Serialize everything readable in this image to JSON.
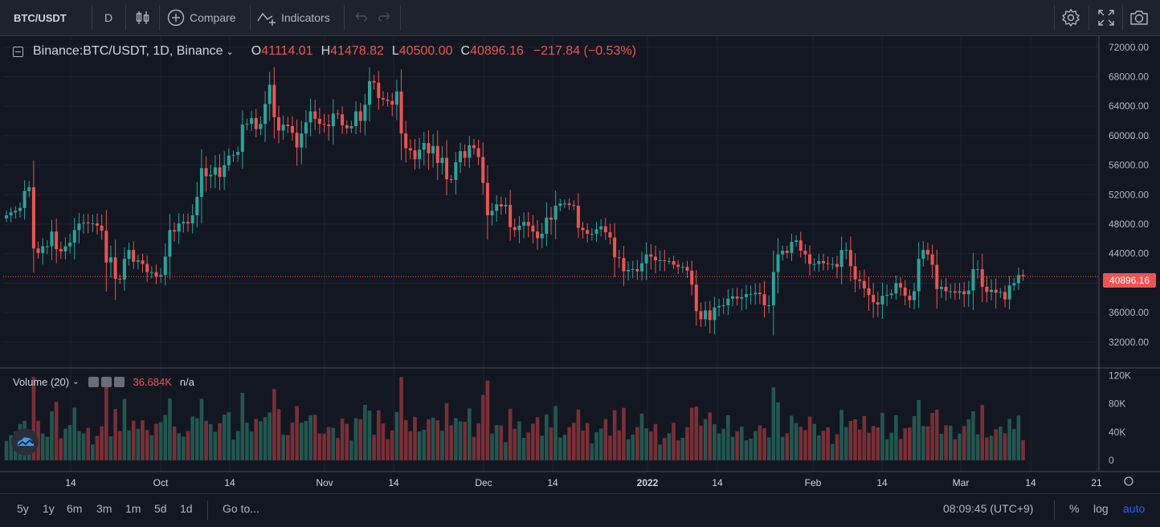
{
  "toolbar": {
    "symbol": "BTC/USDT",
    "interval": "D",
    "compare_label": "Compare",
    "indicators_label": "Indicators"
  },
  "legend": {
    "title": "Binance:BTC/USDT, 1D, Binance",
    "open_prefix": "O",
    "open": "41114.01",
    "high_prefix": "H",
    "high": "41478.82",
    "low_prefix": "L",
    "low": "40500.00",
    "close_prefix": "C",
    "close": "40896.16",
    "change": "−217.84 (−0.53%)"
  },
  "volume_legend": {
    "title": "Volume (20)",
    "value": "36.684K",
    "na": "n/a"
  },
  "last_price_label": "40896.16",
  "bottom": {
    "ranges": [
      "5y",
      "1y",
      "6m",
      "3m",
      "1m",
      "5d",
      "1d"
    ],
    "goto_label": "Go to...",
    "clock": "08:09:45 (UTC+9)",
    "percent_label": "%",
    "log_label": "log",
    "auto_label": "auto"
  },
  "colors": {
    "background": "#131722",
    "up": "#26a69a",
    "down": "#ef5350",
    "up_volume": "#22574f",
    "down_volume": "#7a2f36"
  },
  "chart_data": {
    "type": "candlestick",
    "title": "Binance:BTC/USDT, 1D, Binance",
    "price_axis": {
      "min": 28500,
      "max": 73500,
      "ticks": [
        "72000.00",
        "68000.00",
        "64000.00",
        "60000.00",
        "56000.00",
        "52000.00",
        "48000.00",
        "44000.00",
        "40000.00",
        "36000.00",
        "32000.00"
      ]
    },
    "volume_axis": {
      "max": 125000,
      "ticks": [
        {
          "label": "120K",
          "v": 120000
        },
        {
          "label": "80K",
          "v": 80000
        },
        {
          "label": "40K",
          "v": 40000
        },
        {
          "label": "0",
          "v": 0
        }
      ]
    },
    "x_labels": [
      "14",
      "Oct",
      "14",
      "Nov",
      "14",
      "Dec",
      "14",
      "2022",
      "14",
      "Feb",
      "14",
      "Mar",
      "14",
      "21"
    ],
    "last_price": 40896.16,
    "closes": [
      49200,
      49600,
      49800,
      50200,
      52500,
      53000,
      44700,
      44100,
      45000,
      45000,
      47000,
      44600,
      44300,
      45000,
      45500,
      47200,
      48100,
      48200,
      48100,
      48100,
      47800,
      47100,
      42800,
      43500,
      40600,
      40500,
      43300,
      44500,
      42900,
      43100,
      42600,
      41500,
      41500,
      40900,
      41100,
      43600,
      47200,
      47000,
      48100,
      48300,
      48100,
      49200,
      51700,
      55600,
      54500,
      54700,
      55700,
      54400,
      56000,
      57300,
      57400,
      57800,
      61500,
      61600,
      62400,
      60900,
      61600,
      64300,
      66900,
      62500,
      60700,
      61500,
      61300,
      60400,
      58400,
      60300,
      61800,
      63300,
      62300,
      61600,
      61500,
      61300,
      63000,
      62900,
      61400,
      61000,
      61300,
      63300,
      62000,
      64200,
      67400,
      67200,
      65100,
      64900,
      64700,
      64200,
      66000,
      60300,
      58300,
      58000,
      56800,
      58100,
      59000,
      57600,
      58600,
      56300,
      57000,
      54100,
      54000,
      56400,
      57900,
      57000,
      58700,
      58300,
      57100,
      53600,
      49200,
      49800,
      50700,
      50400,
      50600,
      47600,
      47200,
      47800,
      48300,
      47800,
      47000,
      46100,
      46700,
      48900,
      48600,
      50500,
      50800,
      50800,
      50600,
      50500,
      47500,
      47200,
      46700,
      46700,
      47300,
      47700,
      46900,
      46200,
      43500,
      43400,
      41600,
      41800,
      41900,
      41600,
      42700,
      43900,
      43600,
      43100,
      43100,
      43000,
      43000,
      42500,
      42200,
      42200,
      41700,
      39800,
      36200,
      35100,
      36300,
      35000,
      36700,
      36900,
      37000,
      37900,
      38200,
      37900,
      38100,
      38500,
      38500,
      38700,
      38500,
      37000,
      37000,
      41500,
      43900,
      44400,
      44100,
      45600,
      45800,
      44400,
      43900,
      42600,
      42600,
      43000,
      42700,
      42600,
      42600,
      42200,
      44500,
      44500,
      42300,
      40500,
      40300,
      39300,
      38400,
      37400,
      37100,
      38300,
      38400,
      38600,
      40000,
      39400,
      38300,
      37700,
      38900,
      43300,
      44500,
      43900,
      42500,
      39200,
      39500,
      38900,
      38900,
      38700,
      38900,
      38500,
      39000,
      41900,
      41900,
      39500,
      38800,
      39100,
      38700,
      38800,
      37800,
      39700,
      40000,
      41100,
      40900
    ],
    "vol_note": "volume bars approx 20K–120K per day"
  }
}
